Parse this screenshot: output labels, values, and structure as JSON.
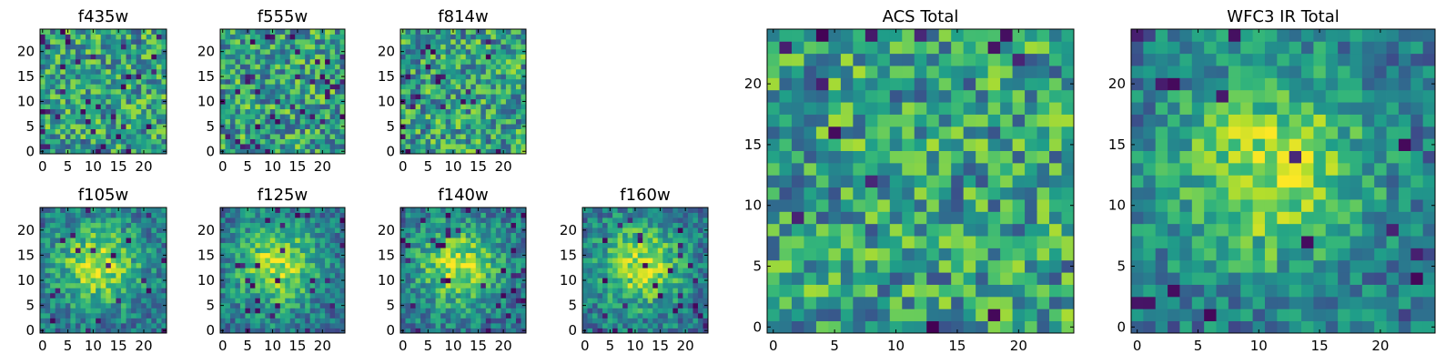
{
  "figure": {
    "colormap": "viridis",
    "colors": {
      "low": "#440154",
      "mid": "#21918c",
      "high": "#fde725",
      "axis": "#000000",
      "background": "#ffffff"
    }
  },
  "chart_data": [
    {
      "type": "heatmap",
      "title": "f435w",
      "grid_size": 25,
      "xlim": [
        0,
        24
      ],
      "ylim": [
        0,
        24
      ],
      "xticks": [
        "0",
        "5",
        "10",
        "15",
        "20"
      ],
      "yticks": [
        "0",
        "5",
        "10",
        "15",
        "20"
      ],
      "pattern": "noise",
      "seed": 11,
      "dark_fraction": 0.05
    },
    {
      "type": "heatmap",
      "title": "f555w",
      "grid_size": 25,
      "xlim": [
        0,
        24
      ],
      "ylim": [
        0,
        24
      ],
      "xticks": [
        "0",
        "5",
        "10",
        "15",
        "20"
      ],
      "yticks": [
        "0",
        "5",
        "10",
        "15",
        "20"
      ],
      "pattern": "noise",
      "seed": 23,
      "dark_fraction": 0.05
    },
    {
      "type": "heatmap",
      "title": "f814w",
      "grid_size": 25,
      "xlim": [
        0,
        24
      ],
      "ylim": [
        0,
        24
      ],
      "xticks": [
        "0",
        "5",
        "10",
        "15",
        "20"
      ],
      "yticks": [
        "0",
        "5",
        "10",
        "15",
        "20"
      ],
      "pattern": "noise",
      "seed": 37,
      "dark_fraction": 0.04
    },
    {
      "type": "heatmap",
      "title": "f105w",
      "grid_size": 25,
      "xlim": [
        0,
        24
      ],
      "ylim": [
        0,
        24
      ],
      "xticks": [
        "0",
        "5",
        "10",
        "15",
        "20"
      ],
      "yticks": [
        "0",
        "5",
        "10",
        "15",
        "20"
      ],
      "pattern": "source",
      "seed": 41,
      "dark_fraction": 0.04
    },
    {
      "type": "heatmap",
      "title": "f125w",
      "grid_size": 25,
      "xlim": [
        0,
        24
      ],
      "ylim": [
        0,
        24
      ],
      "xticks": [
        "0",
        "5",
        "10",
        "15",
        "20"
      ],
      "yticks": [
        "0",
        "5",
        "10",
        "15",
        "20"
      ],
      "pattern": "source",
      "seed": 53,
      "dark_fraction": 0.05
    },
    {
      "type": "heatmap",
      "title": "f140w",
      "grid_size": 25,
      "xlim": [
        0,
        24
      ],
      "ylim": [
        0,
        24
      ],
      "xticks": [
        "0",
        "5",
        "10",
        "15",
        "20"
      ],
      "yticks": [
        "0",
        "5",
        "10",
        "15",
        "20"
      ],
      "pattern": "source",
      "seed": 67,
      "dark_fraction": 0.05
    },
    {
      "type": "heatmap",
      "title": "f160w",
      "grid_size": 25,
      "xlim": [
        0,
        24
      ],
      "ylim": [
        0,
        24
      ],
      "xticks": [
        "0",
        "5",
        "10",
        "15",
        "20"
      ],
      "yticks": [
        "0",
        "5",
        "10",
        "15",
        "20"
      ],
      "pattern": "source",
      "seed": 79,
      "dark_fraction": 0.05
    },
    {
      "type": "heatmap",
      "title": "ACS Total",
      "grid_size": 25,
      "xlim": [
        0,
        24
      ],
      "ylim": [
        0,
        24
      ],
      "xticks": [
        "0",
        "5",
        "10",
        "15",
        "20"
      ],
      "yticks": [
        "0",
        "5",
        "10",
        "15",
        "20"
      ],
      "pattern": "noise",
      "seed": 97,
      "dark_fraction": 0.02
    },
    {
      "type": "heatmap",
      "title": "WFC3 IR Total",
      "grid_size": 25,
      "xlim": [
        0,
        24
      ],
      "ylim": [
        0,
        24
      ],
      "xticks": [
        "0",
        "5",
        "10",
        "15",
        "20"
      ],
      "yticks": [
        "0",
        "5",
        "10",
        "15",
        "20"
      ],
      "pattern": "source",
      "seed": 113,
      "dark_fraction": 0.02
    }
  ]
}
